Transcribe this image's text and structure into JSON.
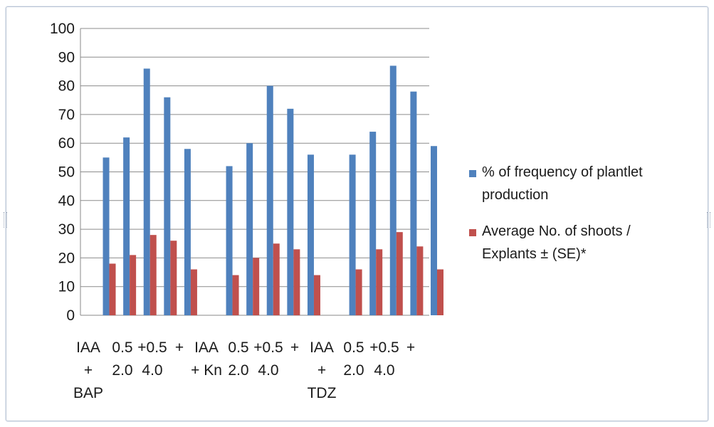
{
  "chart_data": {
    "type": "bar",
    "title": "",
    "xlabel": "",
    "ylabel": "",
    "ylim": [
      0,
      100
    ],
    "yticks": [
      0,
      10,
      20,
      30,
      40,
      50,
      60,
      70,
      80,
      90,
      100
    ],
    "grid": true,
    "legend_position": "right",
    "categories": [
      "IAA + BAP",
      "0.5 + 2.0",
      "0.5 + 4.0",
      "0.5 + 2.0",
      "0.5 + 4.0",
      "IAA + Kn",
      "0.5 + 2.0",
      "0.5 + 4.0",
      "0.5 + 2.0",
      "0.5 + 4.0",
      "IAA + TDZ",
      "0.5 + 2.0",
      "0.5 + 4.0",
      "0.5 + 2.0",
      "0.5 + 4.0"
    ],
    "category_labels": [
      {
        "lines": [
          "IAA",
          "+",
          "BAP"
        ]
      },
      {
        "lines": [
          "0.5",
          "2.0"
        ]
      },
      {
        "lines": [
          "+0.5",
          "4.0"
        ]
      },
      {
        "lines": [
          "+",
          ""
        ]
      },
      {
        "lines": [
          "IAA",
          "+ Kn"
        ]
      },
      {
        "lines": [
          "0.5",
          "2.0"
        ]
      },
      {
        "lines": [
          "+0.5",
          "4.0"
        ]
      },
      {
        "lines": [
          "+",
          ""
        ]
      },
      {
        "lines": [
          "IAA",
          "+",
          "TDZ"
        ]
      },
      {
        "lines": [
          "0.5",
          "2.0"
        ]
      },
      {
        "lines": [
          "+0.5",
          "4.0"
        ]
      },
      {
        "lines": [
          "+",
          ""
        ]
      }
    ],
    "groups": [
      {
        "bars": [
          [
            55,
            18
          ],
          [
            62,
            21
          ],
          [
            86,
            28
          ],
          [
            76,
            26
          ],
          [
            58,
            16
          ]
        ]
      },
      {
        "bars": [
          [
            52,
            14
          ],
          [
            60,
            20
          ],
          [
            80,
            25
          ],
          [
            72,
            23
          ],
          [
            56,
            14
          ]
        ]
      },
      {
        "bars": [
          [
            56,
            16
          ],
          [
            64,
            23
          ],
          [
            87,
            29
          ],
          [
            78,
            24
          ],
          [
            59,
            16
          ]
        ]
      }
    ],
    "series": [
      {
        "name": "% of frequency of plantlet production",
        "legend_lines": [
          "% of frequency of plantlet",
          "production"
        ],
        "color": "#4f81bd",
        "values": [
          55,
          62,
          86,
          76,
          58,
          52,
          60,
          80,
          72,
          56,
          56,
          64,
          87,
          78,
          59
        ]
      },
      {
        "name": "Average No. of shoots / Explants ± (SE)*",
        "legend_lines": [
          "Average No. of shoots /",
          "Explants ±  (SE)*"
        ],
        "color": "#c0504d",
        "values": [
          18,
          21,
          28,
          26,
          16,
          14,
          20,
          25,
          23,
          14,
          16,
          23,
          29,
          24,
          16
        ]
      }
    ]
  }
}
